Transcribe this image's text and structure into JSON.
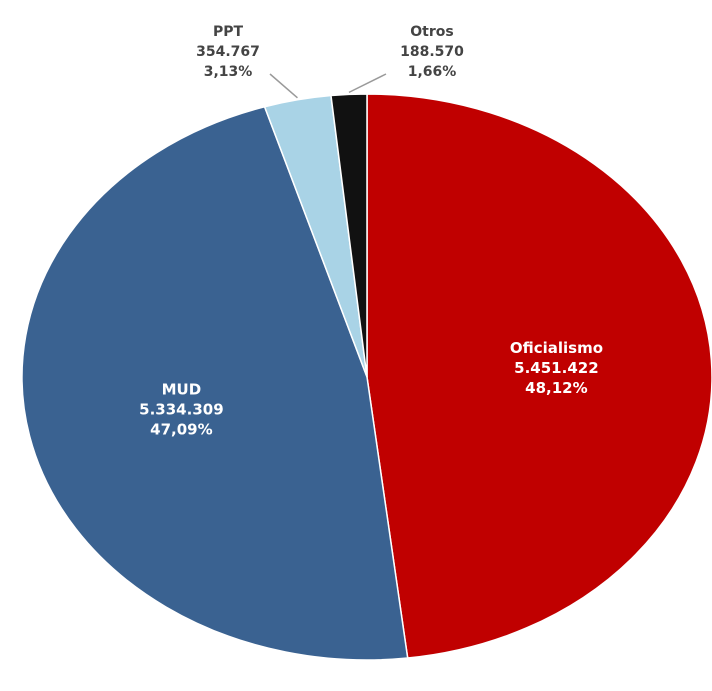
{
  "chart_data": {
    "type": "pie",
    "title": "",
    "slices": [
      {
        "name": "Oficialismo",
        "value": 5451422,
        "value_label": "5.451.422",
        "percent_label": "48,12%",
        "percent": 48.12,
        "color": "#c00000",
        "label_position": "inside"
      },
      {
        "name": "MUD",
        "value": 5334309,
        "value_label": "5.334.309",
        "percent_label": "47,09%",
        "percent": 47.09,
        "color": "#3a6291",
        "label_position": "inside"
      },
      {
        "name": "PPT",
        "value": 354767,
        "value_label": "354.767",
        "percent_label": "3,13%",
        "percent": 3.13,
        "color": "#a9d3e6",
        "label_position": "outside"
      },
      {
        "name": "Otros",
        "value": 188570,
        "value_label": "188.570",
        "percent_label": "1,66%",
        "percent": 1.66,
        "color": "#111111",
        "label_position": "outside"
      }
    ],
    "legend": "none"
  }
}
